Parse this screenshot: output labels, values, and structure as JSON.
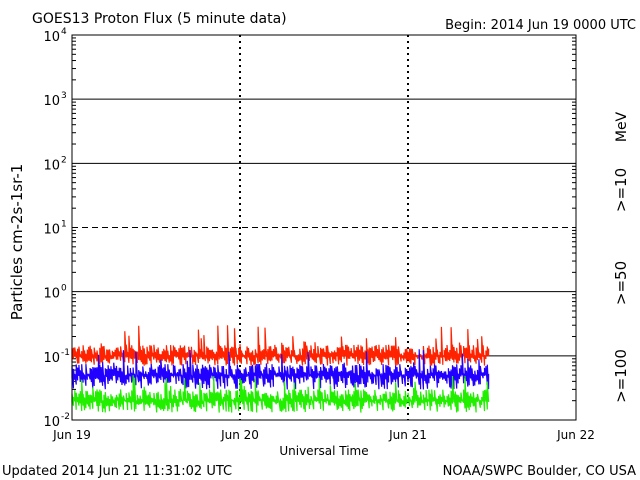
{
  "header": {
    "title": "GOES13 Proton Flux (5 minute data)",
    "begin": "Begin: 2014 Jun 19 0000 UTC"
  },
  "footer": {
    "updated": "Updated 2014 Jun 21 11:31:02 UTC",
    "credit": "NOAA/SWPC Boulder, CO USA"
  },
  "colors": {
    "gt10": "#ff2200",
    "gt50": "#2200ff",
    "gt100": "#22ee00",
    "axis": "#000000"
  },
  "chart_data": {
    "type": "line",
    "title": "GOES13 Proton Flux (5 minute data)",
    "xlabel": "Universal Time",
    "ylabel": "Particles cm-2s-1sr-1",
    "yscale": "log",
    "ylim": [
      0.01,
      10000
    ],
    "xlim_days": [
      0,
      3
    ],
    "x_ticks": [
      "Jun 19",
      "Jun 20",
      "Jun 21",
      "Jun 22"
    ],
    "y_ticks": [
      {
        "base": "10",
        "exp": "-2"
      },
      {
        "base": "10",
        "exp": "-1"
      },
      {
        "base": "10",
        "exp": "0"
      },
      {
        "base": "10",
        "exp": "1"
      },
      {
        "base": "10",
        "exp": "2"
      },
      {
        "base": "10",
        "exp": "3"
      },
      {
        "base": "10",
        "exp": "4"
      }
    ],
    "threshold_flux": 10,
    "energy_unit": "MeV",
    "data_end": "2014 Jun 21 11:30 UTC",
    "series": [
      {
        "name": ">=10",
        "color": "#ff2200",
        "typical": 0.1,
        "min": 0.07,
        "max": 0.3
      },
      {
        "name": ">=50",
        "color": "#2200ff",
        "typical": 0.05,
        "min": 0.03,
        "max": 0.13
      },
      {
        "name": ">=100",
        "color": "#22ee00",
        "typical": 0.02,
        "min": 0.013,
        "max": 0.05
      }
    ]
  }
}
